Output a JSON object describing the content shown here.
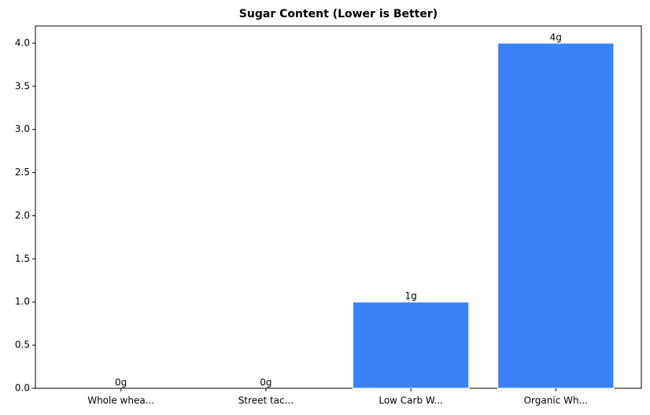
{
  "chart_data": {
    "type": "bar",
    "title": "Sugar Content (Lower is Better)",
    "categories": [
      "Whole whea...",
      "Street tac...",
      "Low Carb W...",
      "Organic Wh..."
    ],
    "values": [
      0,
      0,
      1,
      4
    ],
    "value_labels": [
      "0g",
      "0g",
      "1g",
      "4g"
    ],
    "color": "#3b82f6",
    "ylim": [
      0,
      4.2
    ],
    "yticks": [
      {
        "value": 0,
        "label": "0.0"
      },
      0.5,
      {
        "value": 1,
        "label": "1.0"
      },
      1.5,
      {
        "value": 2,
        "label": "2.0"
      },
      2.5,
      {
        "value": 3,
        "label": "3.0"
      },
      3.5,
      {
        "value": 4,
        "label": "4.0"
      }
    ]
  }
}
